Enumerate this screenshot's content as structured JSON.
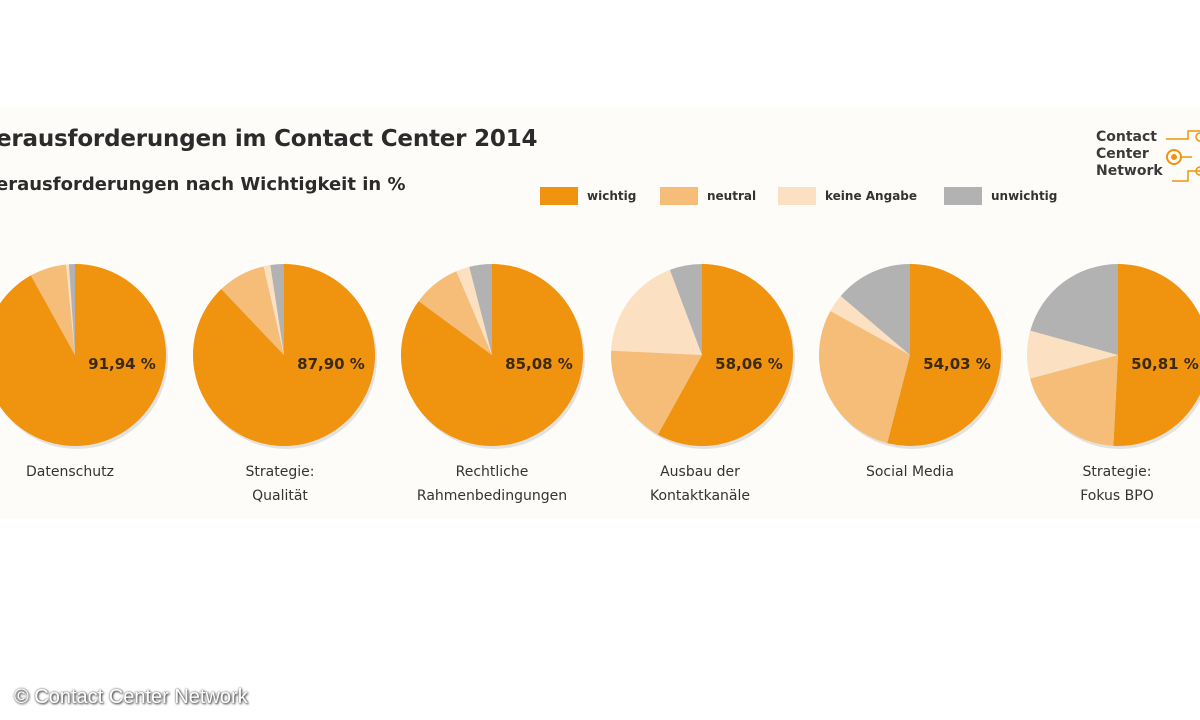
{
  "title": "erausforderungen im Contact Center 2014",
  "subtitle": "erausforderungen nach Wichtigkeit in %",
  "logo": {
    "lines": [
      "Contact",
      "Center",
      "Network"
    ]
  },
  "copyright": "© Contact Center Network",
  "colors": {
    "wichtig": "#f0930e",
    "neutral": "#f6bd78",
    "keine_angabe": "#fbe0c1",
    "unwichtig": "#b2b2b2"
  },
  "legend": [
    {
      "label": "wichtig",
      "color": "#f0930e"
    },
    {
      "label": "neutral",
      "color": "#f6bd78"
    },
    {
      "label": "keine Angabe",
      "color": "#fbe0c1"
    },
    {
      "label": "unwichtig",
      "color": "#b2b2b2"
    }
  ],
  "chart_data": {
    "type": "pie",
    "series_names": [
      "wichtig",
      "neutral",
      "keine Angabe",
      "unwichtig"
    ],
    "charts": [
      {
        "label_lines": [
          "Datenschutz"
        ],
        "value_label": "91,94 %",
        "values": [
          91.94,
          6.5,
          0.5,
          1.06
        ]
      },
      {
        "label_lines": [
          "Strategie:",
          "Qualität"
        ],
        "value_label": "87,90 %",
        "values": [
          87.9,
          8.5,
          1.2,
          2.4
        ]
      },
      {
        "label_lines": [
          "Rechtliche",
          "Rahmenbedingungen"
        ],
        "value_label": "85,08 %",
        "values": [
          85.08,
          8.5,
          2.4,
          4.02
        ]
      },
      {
        "label_lines": [
          "Ausbau der",
          "Kontaktkanäle"
        ],
        "value_label": "58,06 %",
        "values": [
          58.06,
          17.7,
          18.5,
          5.74
        ]
      },
      {
        "label_lines": [
          "Social Media"
        ],
        "value_label": "54,03 %",
        "values": [
          54.03,
          29.0,
          3.2,
          13.77
        ]
      },
      {
        "label_lines": [
          "Strategie:",
          "Fokus BPO"
        ],
        "value_label": "50,81 %",
        "values": [
          50.81,
          20.0,
          8.5,
          20.69
        ]
      }
    ]
  }
}
